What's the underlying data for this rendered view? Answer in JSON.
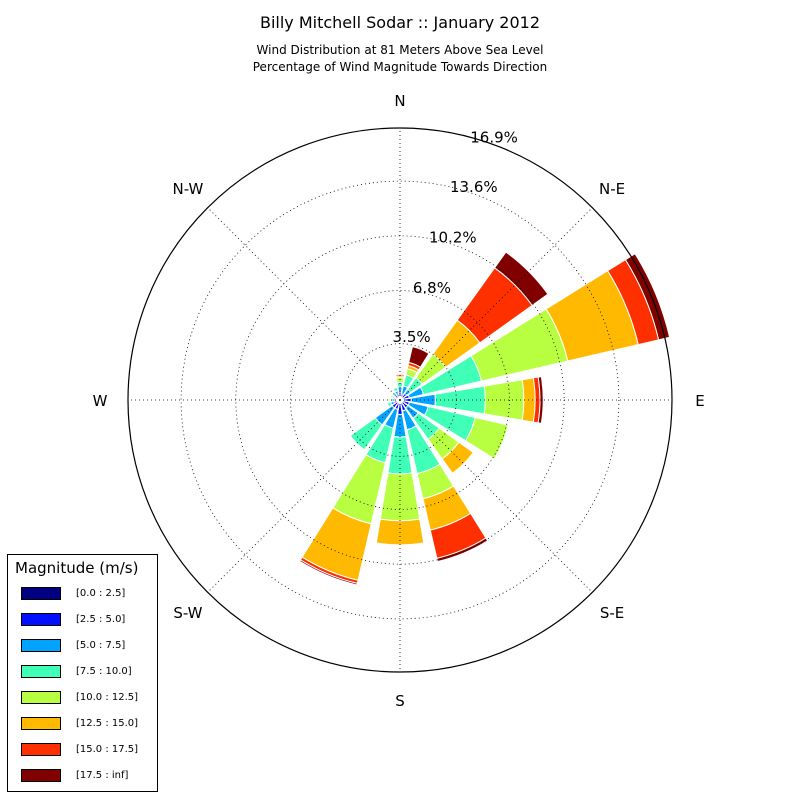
{
  "chart_data": {
    "type": "windrose",
    "title": "Billy Mitchell Sodar :: January 2012",
    "subtitle_lines": [
      "Wind Distribution at 81 Meters Above Sea Level",
      "Percentage of Wind Magnitude Towards Direction"
    ],
    "direction_labels": [
      "N",
      "N-E",
      "E",
      "S-E",
      "S",
      "S-W",
      "W",
      "N-W"
    ],
    "radial_max": 16.9,
    "radial_ticks": [
      3.5,
      6.8,
      10.2,
      13.6,
      16.9
    ],
    "radial_tick_labels": [
      "3.5%",
      "6.8%",
      "10.2%",
      "13.6%",
      "16.9%"
    ],
    "grid": true,
    "legend_title": "Magnitude (m/s)",
    "legend_placement": "lower-left",
    "bins": [
      "[0.0 : 2.5]",
      "[2.5 : 5.0]",
      "[5.0 : 7.5]",
      "[7.5 : 10.0]",
      "[10.0 : 12.5]",
      "[12.5 : 15.0]",
      "[15.0 : 17.5]",
      "[17.5 : inf]"
    ],
    "bin_colors": [
      "#000080",
      "#0010ff",
      "#00a4ff",
      "#40ffb7",
      "#b7ff40",
      "#ffb900",
      "#ff3000",
      "#800000"
    ],
    "sectors": [
      {
        "direction_deg": 0,
        "cumulative": [
          0.2,
          0.5,
          0.8,
          1.1,
          1.4,
          1.5,
          1.6,
          1.6
        ]
      },
      {
        "direction_deg": 22.5,
        "cumulative": [
          0.2,
          0.4,
          0.9,
          1.6,
          2.0,
          2.2,
          2.4,
          3.4
        ]
      },
      {
        "direction_deg": 45,
        "cumulative": [
          0.2,
          0.5,
          0.8,
          1.7,
          3.5,
          6.1,
          10.1,
          11.3
        ]
      },
      {
        "direction_deg": 67.5,
        "cumulative": [
          0.2,
          0.6,
          1.5,
          5.2,
          10.7,
          15.2,
          16.5,
          17.2
        ]
      },
      {
        "direction_deg": 90,
        "cumulative": [
          0.2,
          0.7,
          2.2,
          5.3,
          7.7,
          8.4,
          8.7,
          8.9
        ]
      },
      {
        "direction_deg": 112.5,
        "cumulative": [
          0.2,
          0.6,
          1.8,
          4.8,
          6.9,
          6.9,
          6.9,
          6.9
        ]
      },
      {
        "direction_deg": 135,
        "cumulative": [
          0.2,
          0.6,
          1.4,
          3.0,
          4.5,
          5.6,
          5.6,
          5.6
        ]
      },
      {
        "direction_deg": 157.5,
        "cumulative": [
          0.2,
          0.7,
          1.9,
          4.7,
          6.3,
          8.3,
          10.1,
          10.3
        ]
      },
      {
        "direction_deg": 180,
        "cumulative": [
          0.2,
          0.9,
          2.3,
          4.6,
          7.5,
          9.0,
          9.0,
          9.0
        ]
      },
      {
        "direction_deg": 202.5,
        "cumulative": [
          0.2,
          0.6,
          1.8,
          4.0,
          7.9,
          11.5,
          11.7,
          11.8
        ]
      },
      {
        "direction_deg": 225,
        "cumulative": [
          0.2,
          0.6,
          1.9,
          3.8,
          3.8,
          3.8,
          3.8,
          3.8
        ]
      },
      {
        "direction_deg": 247.5,
        "cumulative": [
          0.2,
          0.4,
          0.6,
          0.8,
          0.8,
          0.8,
          0.8,
          0.8
        ]
      },
      {
        "direction_deg": 270,
        "cumulative": [
          0.2,
          0.3,
          0.5,
          0.6,
          0.7,
          0.7,
          0.7,
          0.7
        ]
      },
      {
        "direction_deg": 292.5,
        "cumulative": [
          0.2,
          0.3,
          0.4,
          0.5,
          0.6,
          0.6,
          0.6,
          0.6
        ]
      },
      {
        "direction_deg": 315,
        "cumulative": [
          0.2,
          0.3,
          0.5,
          0.6,
          0.6,
          0.6,
          0.6,
          0.6
        ]
      },
      {
        "direction_deg": 337.5,
        "cumulative": [
          0.2,
          0.4,
          0.6,
          0.8,
          0.8,
          0.8,
          0.8,
          0.8
        ]
      }
    ]
  }
}
